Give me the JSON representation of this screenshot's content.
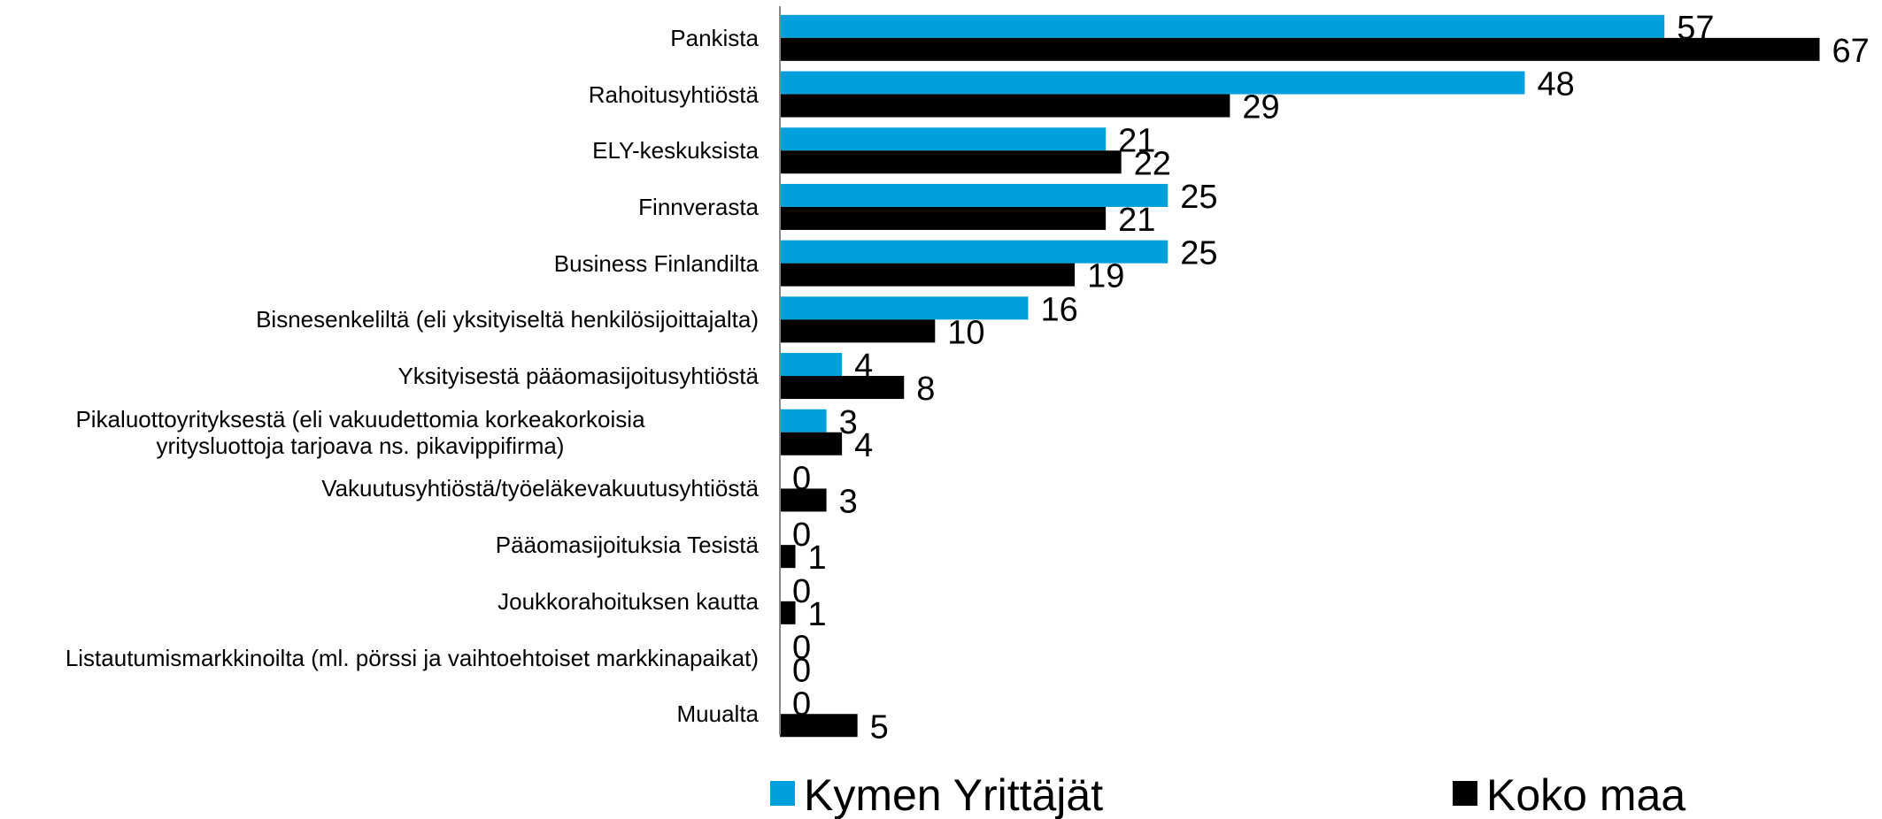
{
  "chart_data": {
    "type": "bar",
    "orientation": "horizontal",
    "categories": [
      "Pankista",
      "Rahoitusyhtiöstä",
      "ELY-keskuksista",
      "Finnverasta",
      "Business Finlandilta",
      "Bisnesenkeliltä (eli yksityiseltä henkilösijoittajalta)",
      "Yksityisestä pääomasijoitusyhtiöstä",
      "Pikaluottoyrityksestä (eli vakuudettomia korkeakorkoisia\nyritysluottoja tarjoava ns. pikavippifirma)",
      "Vakuutusyhtiöstä/työeläkevakuutusyhtiöstä",
      "Pääomasijoituksia Tesistä",
      "Joukkorahoituksen kautta",
      "Listautumismarkkinoilta (ml. pörssi ja vaihtoehtoiset markkinapaikat)",
      "Muualta"
    ],
    "series": [
      {
        "name": "Kymen Yrittäjät",
        "color": "#00a0dc",
        "values": [
          57,
          48,
          21,
          25,
          25,
          16,
          4,
          3,
          0,
          0,
          0,
          0,
          0
        ]
      },
      {
        "name": "Koko maa",
        "color": "#000000",
        "values": [
          67,
          29,
          22,
          21,
          19,
          10,
          8,
          4,
          3,
          1,
          1,
          0,
          5
        ]
      }
    ],
    "xlim": [
      0,
      70
    ],
    "grid": false,
    "legend": "bottom"
  }
}
